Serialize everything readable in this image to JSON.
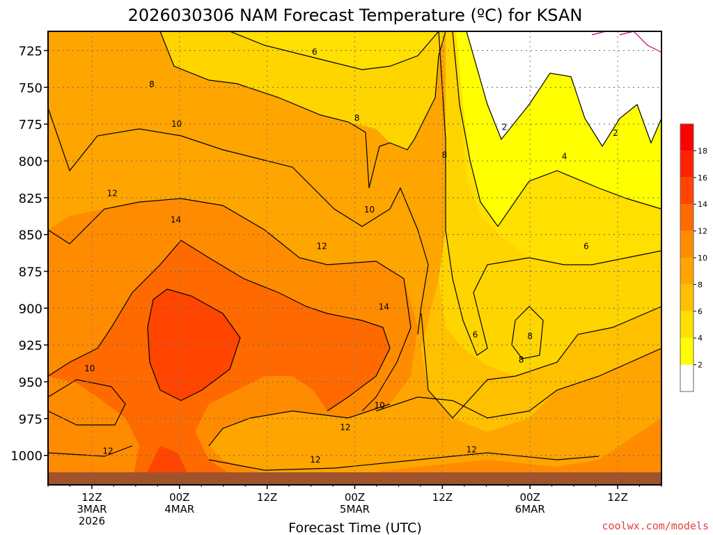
{
  "chart_data": {
    "type": "heatmap",
    "title": "2026030306 NAM Forecast Temperature (ºC) for KSAN",
    "xlabel": "Forecast Time (UTC)",
    "ylabel": "",
    "credit": "coolwx.com/models",
    "x_ticks": [
      {
        "hour": 6,
        "line1": "12Z",
        "line2": "3MAR",
        "line3": "2026"
      },
      {
        "hour": 18,
        "line1": "00Z",
        "line2": "4MAR",
        "line3": ""
      },
      {
        "hour": 30,
        "line1": "12Z",
        "line2": "",
        "line3": ""
      },
      {
        "hour": 42,
        "line1": "00Z",
        "line2": "5MAR",
        "line3": ""
      },
      {
        "hour": 54,
        "line1": "12Z",
        "line2": "",
        "line3": ""
      },
      {
        "hour": 66,
        "line1": "00Z",
        "line2": "6MAR",
        "line3": ""
      },
      {
        "hour": 78,
        "line1": "12Z",
        "line2": "",
        "line3": ""
      }
    ],
    "xlim": [
      0,
      84
    ],
    "y_ticks": [
      725,
      750,
      775,
      800,
      825,
      850,
      875,
      900,
      925,
      950,
      975,
      1000
    ],
    "ylim": [
      712,
      1020
    ],
    "y_axis": "pressure (inverted)",
    "colorbar_levels": [
      2,
      4,
      6,
      8,
      10,
      12,
      14,
      16,
      18
    ],
    "colorbar_colors": [
      "#ffffff",
      "#ffff00",
      "#ffe000",
      "#ffc000",
      "#ffa500",
      "#ff8c00",
      "#ff6a00",
      "#ff4500",
      "#ff2200",
      "#ff0000"
    ],
    "contour_labels": [
      {
        "hour": 36.5,
        "p": 726,
        "text": "6"
      },
      {
        "hour": 14.2,
        "p": 748,
        "text": "8"
      },
      {
        "hour": 42.3,
        "p": 771,
        "text": "8"
      },
      {
        "hour": 54.3,
        "p": 796,
        "text": "8"
      },
      {
        "hour": 17.6,
        "p": 775,
        "text": "10"
      },
      {
        "hour": 44.0,
        "p": 833,
        "text": "10"
      },
      {
        "hour": 8.8,
        "p": 822,
        "text": "12"
      },
      {
        "hour": 37.5,
        "p": 858,
        "text": "12"
      },
      {
        "hour": 17.5,
        "p": 840,
        "text": "14"
      },
      {
        "hour": 46.0,
        "p": 899,
        "text": "14"
      },
      {
        "hour": 62.5,
        "p": 777,
        "text": "2"
      },
      {
        "hour": 77.7,
        "p": 781,
        "text": "2"
      },
      {
        "hour": 70.7,
        "p": 797,
        "text": "4"
      },
      {
        "hour": 73.7,
        "p": 858,
        "text": "6"
      },
      {
        "hour": 58.5,
        "p": 918,
        "text": "6"
      },
      {
        "hour": 66.0,
        "p": 919,
        "text": "8"
      },
      {
        "hour": 64.8,
        "p": 935,
        "text": "8"
      },
      {
        "hour": 5.7,
        "p": 941,
        "text": "10"
      },
      {
        "hour": 45.4,
        "p": 966,
        "text": "10"
      },
      {
        "hour": 40.7,
        "p": 981,
        "text": "12"
      },
      {
        "hour": 8.2,
        "p": 997,
        "text": "12"
      },
      {
        "hour": 36.6,
        "p": 1003,
        "text": "12"
      },
      {
        "hour": 58.0,
        "p": 996,
        "text": "12"
      }
    ]
  }
}
